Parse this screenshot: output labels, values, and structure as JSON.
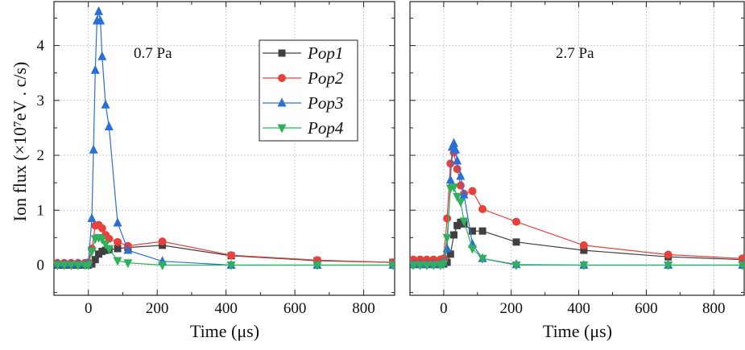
{
  "chart_data": {
    "type": "line",
    "ylabel": "Ion flux (×10⁷eV . c/s)",
    "ylim": [
      -0.55,
      4.8
    ],
    "yticks": [
      0,
      1,
      2,
      3,
      4
    ],
    "xlim": [
      -100,
      890
    ],
    "xticks": [
      0,
      200,
      400,
      600,
      800
    ],
    "grid": true,
    "legend": {
      "location": "panel-1-top-right",
      "entries": [
        {
          "name": "Pop1",
          "color": "#404040",
          "marker": "square"
        },
        {
          "name": "Pop2",
          "color": "#e8403a",
          "marker": "circle"
        },
        {
          "name": "Pop3",
          "color": "#2a6fd6",
          "marker": "triangle-up"
        },
        {
          "name": "Pop4",
          "color": "#2eb05c",
          "marker": "triangle-down"
        }
      ]
    },
    "panels": [
      {
        "annotation": "0.7 Pa",
        "xlabel": "Time (μs)",
        "series": [
          {
            "name": "Pop1",
            "color": "#404040",
            "marker": "square",
            "x": [
              -90,
              -70,
              -50,
              -30,
              -10,
              0,
              10,
              20,
              30,
              40,
              50,
              60,
              85,
              115,
              215,
              415,
              665,
              885
            ],
            "y": [
              0,
              0,
              0,
              0,
              0,
              0,
              0.02,
              0.1,
              0.2,
              0.25,
              0.27,
              0.28,
              0.3,
              0.32,
              0.36,
              0.17,
              0.08,
              0.05
            ]
          },
          {
            "name": "Pop2",
            "color": "#e8403a",
            "marker": "circle",
            "x": [
              -90,
              -70,
              -50,
              -30,
              -10,
              0,
              10,
              20,
              30,
              40,
              50,
              60,
              85,
              115,
              215,
              415,
              665,
              885
            ],
            "y": [
              0.04,
              0.04,
              0.04,
              0.04,
              0.04,
              0.05,
              0.3,
              0.72,
              0.73,
              0.67,
              0.55,
              0.48,
              0.42,
              0.35,
              0.43,
              0.18,
              0.09,
              0.05
            ]
          },
          {
            "name": "Pop3",
            "color": "#2a6fd6",
            "marker": "triangle-up",
            "x": [
              -90,
              -70,
              -50,
              -30,
              -10,
              0,
              10,
              15,
              20,
              25,
              30,
              35,
              40,
              50,
              60,
              85,
              115,
              215,
              415,
              665,
              885
            ],
            "y": [
              0.02,
              0.02,
              0.02,
              0.02,
              0.02,
              0.03,
              0.85,
              2.1,
              3.55,
              4.45,
              4.62,
              4.45,
              3.8,
              2.92,
              2.52,
              0.77,
              0.27,
              0.07,
              0,
              0,
              0
            ]
          },
          {
            "name": "Pop4",
            "color": "#2eb05c",
            "marker": "triangle-down",
            "x": [
              -90,
              -70,
              -50,
              -30,
              -10,
              0,
              10,
              20,
              30,
              40,
              50,
              60,
              85,
              115,
              215,
              415,
              665,
              885
            ],
            "y": [
              0,
              0,
              0,
              0,
              0,
              0,
              0.25,
              0.48,
              0.5,
              0.47,
              0.38,
              0.3,
              0.08,
              0.04,
              0,
              0,
              0,
              0
            ]
          }
        ]
      },
      {
        "annotation": "2.7 Pa",
        "xlabel": "Time (μs)",
        "series": [
          {
            "name": "Pop1",
            "color": "#404040",
            "marker": "square",
            "x": [
              -90,
              -70,
              -50,
              -30,
              -10,
              0,
              10,
              20,
              30,
              40,
              50,
              60,
              85,
              115,
              215,
              415,
              665,
              885
            ],
            "y": [
              0.01,
              0.01,
              0.01,
              0.01,
              0.01,
              0.02,
              0.05,
              0.2,
              0.55,
              0.72,
              0.78,
              0.75,
              0.62,
              0.62,
              0.42,
              0.27,
              0.15,
              0.1
            ]
          },
          {
            "name": "Pop2",
            "color": "#e8403a",
            "marker": "circle",
            "x": [
              -90,
              -70,
              -50,
              -30,
              -10,
              0,
              10,
              20,
              30,
              40,
              50,
              60,
              85,
              115,
              215,
              415,
              665,
              885
            ],
            "y": [
              0.1,
              0.1,
              0.1,
              0.1,
              0.1,
              0.12,
              0.85,
              1.85,
              2.05,
              1.75,
              1.45,
              1.3,
              1.35,
              1.02,
              0.79,
              0.36,
              0.19,
              0.12
            ]
          },
          {
            "name": "Pop3",
            "color": "#2a6fd6",
            "marker": "triangle-up",
            "x": [
              -90,
              -70,
              -50,
              -30,
              -10,
              0,
              10,
              20,
              25,
              30,
              35,
              40,
              50,
              60,
              85,
              115,
              215,
              415,
              665,
              885
            ],
            "y": [
              0.02,
              0.02,
              0.02,
              0.02,
              0.02,
              0.05,
              0.3,
              1.55,
              2.15,
              2.22,
              2.1,
              1.9,
              1.62,
              1.28,
              0.38,
              0.12,
              0.01,
              0,
              0,
              0
            ]
          },
          {
            "name": "Pop4",
            "color": "#2eb05c",
            "marker": "triangle-down",
            "x": [
              -90,
              -70,
              -50,
              -30,
              -10,
              0,
              10,
              20,
              30,
              40,
              50,
              60,
              85,
              115,
              215,
              415,
              665,
              885
            ],
            "y": [
              0,
              0,
              0,
              0,
              0,
              0.02,
              0.5,
              1.4,
              1.42,
              1.25,
              1.15,
              0.8,
              0.3,
              0.12,
              0,
              0,
              0,
              0
            ]
          }
        ]
      }
    ]
  }
}
